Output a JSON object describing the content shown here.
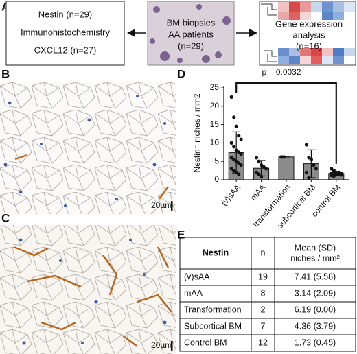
{
  "panel_labels": [
    "A",
    "B",
    "C",
    "D",
    "E"
  ],
  "panel_a": {
    "left_box": [
      "Nestin (n=29)",
      "Immunohistochemistry",
      "CXCL12 (n=27)"
    ],
    "center_box": [
      "BM biopsies",
      "AA patients",
      "(n=29)"
    ],
    "right_box": [
      "Gene expression",
      "analysis",
      "(n=16)"
    ]
  },
  "panel_b": {
    "scale_bar": "20µm"
  },
  "panel_c": {
    "scale_bar": "20µm"
  },
  "chart_data": {
    "type": "bar",
    "y_label": "Nestin⁺ niches / mm2",
    "annotation": "p = 0.0032",
    "categories": [
      "(v)sAA",
      "mAA",
      "transformation",
      "subcortical BM",
      "control BM"
    ],
    "values": [
      7.41,
      3.14,
      6.19,
      4.36,
      1.73
    ],
    "errors": [
      5.58,
      2.09,
      0,
      3.79,
      0.45
    ],
    "points": [
      [
        22.5,
        17,
        14.5,
        12,
        11,
        10,
        9,
        8,
        7.5,
        7,
        6,
        5.5,
        5,
        4.5,
        4,
        3,
        2.5,
        2,
        1.5
      ],
      [
        6,
        5,
        4,
        3.5,
        3,
        2,
        1.5,
        0.8
      ],
      [
        6.19,
        6.19
      ],
      [
        9.5,
        6,
        5.5,
        4,
        3,
        2,
        0.5
      ],
      [
        3,
        2.5,
        2,
        2,
        1.8,
        1.7,
        1.6,
        1.5,
        1.4,
        1.3,
        1.2,
        1
      ]
    ],
    "color": "#8c8c8c",
    "point_color": "#111111",
    "ylim": [
      0,
      25
    ],
    "yticks": [
      0,
      5,
      10,
      15,
      20,
      25
    ]
  },
  "table": {
    "header": [
      "Nestin",
      "n",
      [
        "Mean (SD)",
        "niches / mm²"
      ]
    ],
    "rows": [
      [
        "(v)sAA",
        19,
        "7.41 (5.58)"
      ],
      [
        "mAA",
        8,
        "3.14 (2.09)"
      ],
      [
        "Transformation",
        2,
        "6.19 (0.00)"
      ],
      [
        "Subcortical BM",
        7,
        "4.36 (3.79)"
      ],
      [
        "Control BM",
        12,
        "1.73 (0.45)"
      ]
    ]
  }
}
